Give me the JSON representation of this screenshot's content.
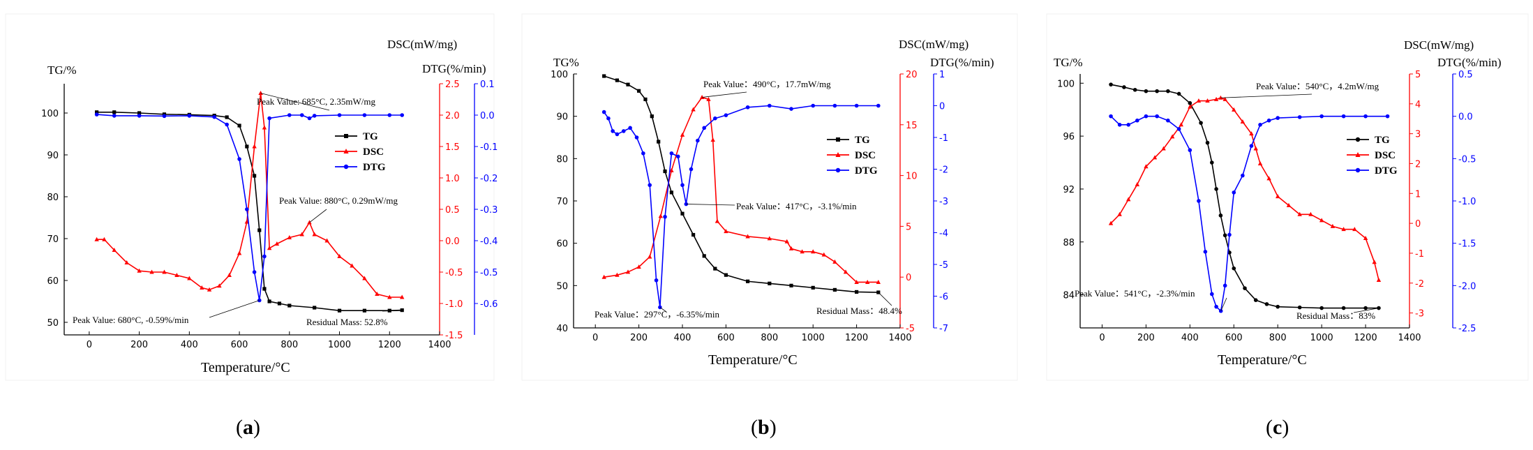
{
  "colors": {
    "TG": "#000000",
    "DSC": "#ff0000",
    "DTG": "#0000ff"
  },
  "chart_data": [
    {
      "type": "line",
      "caption": "a",
      "xlabel": "Temperature/°C",
      "y1label": "TG/%",
      "y2label": "DSC(mW/mg)",
      "y3label": "DTG(%/min)",
      "xlim": [
        -100,
        1400
      ],
      "xticks": [
        "0",
        "200",
        "400",
        "600",
        "800",
        "1000",
        "1200",
        "1400"
      ],
      "y1lim": [
        47,
        107
      ],
      "y1ticks": [
        "50",
        "60",
        "70",
        "80",
        "90",
        "100"
      ],
      "y2lim": [
        -1.5,
        2.5
      ],
      "y2ticks": [
        "-1.5",
        "-1.0",
        "-0.5",
        "0.0",
        "0.5",
        "1.0",
        "1.5",
        "2.0",
        "2.5"
      ],
      "y3lim": [
        -0.7,
        0.1
      ],
      "y3ticks": [
        "-0.6",
        "-0.5",
        "-0.4",
        "-0.3",
        "-0.2",
        "-0.1",
        "0.0",
        "0.1"
      ],
      "legend": [
        "TG",
        "DSC",
        "DTG"
      ],
      "series": [
        {
          "name": "TG",
          "axis": "y1",
          "marker": "square",
          "x": [
            30,
            100,
            200,
            300,
            400,
            500,
            550,
            600,
            630,
            660,
            680,
            700,
            720,
            760,
            800,
            900,
            1000,
            1100,
            1200,
            1250
          ],
          "y": [
            100.2,
            100.2,
            100,
            99.7,
            99.6,
            99.4,
            99,
            97,
            92,
            85,
            72,
            58,
            55,
            54.5,
            54,
            53.5,
            52.8,
            52.8,
            52.8,
            52.9
          ]
        },
        {
          "name": "DSC",
          "axis": "y2",
          "marker": "triangle",
          "x": [
            30,
            60,
            100,
            150,
            200,
            250,
            300,
            350,
            400,
            450,
            480,
            520,
            560,
            600,
            630,
            660,
            685,
            700,
            720,
            750,
            800,
            850,
            880,
            900,
            950,
            1000,
            1050,
            1100,
            1150,
            1200,
            1250
          ],
          "y": [
            0.02,
            0.02,
            -0.15,
            -0.35,
            -0.48,
            -0.5,
            -0.5,
            -0.55,
            -0.6,
            -0.75,
            -0.78,
            -0.72,
            -0.55,
            -0.2,
            0.3,
            1.5,
            2.35,
            1.8,
            -0.12,
            -0.05,
            0.05,
            0.1,
            0.29,
            0.1,
            0.0,
            -0.25,
            -0.4,
            -0.6,
            -0.85,
            -0.9,
            -0.9
          ]
        },
        {
          "name": "DTG",
          "axis": "y3",
          "marker": "circle",
          "x": [
            30,
            100,
            200,
            300,
            400,
            500,
            550,
            600,
            630,
            660,
            680,
            700,
            720,
            800,
            850,
            880,
            900,
            1000,
            1100,
            1200,
            1250
          ],
          "y": [
            0.002,
            -0.002,
            -0.002,
            -0.003,
            -0.002,
            -0.006,
            -0.03,
            -0.14,
            -0.3,
            -0.5,
            -0.59,
            -0.45,
            -0.01,
            0.0,
            0.0,
            -0.01,
            -0.002,
            0.0,
            0.0,
            0.0,
            0.0
          ]
        }
      ],
      "annotations": [
        {
          "text": "Peak Value: 685°C,  2.35mW/mg",
          "at_x": 685,
          "at_y": 2.35,
          "axis": "y2"
        },
        {
          "text": "Peak Value: 880°C, 0.29mW/mg",
          "at_x": 880,
          "at_y": 0.29,
          "axis": "y2"
        },
        {
          "text": "Peak Value: 680°C,  -0.59%/min",
          "at_x": 680,
          "at_y": -0.59,
          "axis": "y3"
        },
        {
          "text": "Residual Mass: 52.8%",
          "at_x": 1250,
          "at_y": 52.8,
          "axis": "y1"
        }
      ]
    },
    {
      "type": "line",
      "caption": "b",
      "xlabel": "Temperature/°C",
      "y1label": "TG%",
      "y2label": "DSC(mW/mg)",
      "y3label": "DTG(%/min)",
      "xlim": [
        -100,
        1400
      ],
      "xticks": [
        "0",
        "200",
        "400",
        "600",
        "800",
        "1000",
        "1200",
        "1400"
      ],
      "y1lim": [
        40,
        100
      ],
      "y1ticks": [
        "40",
        "50",
        "60",
        "70",
        "80",
        "90",
        "100"
      ],
      "y2lim": [
        -5,
        20
      ],
      "y2ticks": [
        "-5",
        "0",
        "5",
        "10",
        "15",
        "20"
      ],
      "y3lim": [
        -7,
        1
      ],
      "y3ticks": [
        "-7",
        "-6",
        "-5",
        "-4",
        "-3",
        "-2",
        "-1",
        "0",
        "1"
      ],
      "legend": [
        "TG",
        "DSC",
        "DTG"
      ],
      "series": [
        {
          "name": "TG",
          "axis": "y1",
          "marker": "square",
          "x": [
            40,
            100,
            150,
            200,
            230,
            260,
            290,
            320,
            350,
            400,
            450,
            500,
            550,
            600,
            700,
            800,
            900,
            1000,
            1100,
            1200,
            1300
          ],
          "y": [
            99.5,
            98.5,
            97.5,
            96,
            94,
            90,
            84,
            77,
            72,
            67,
            62,
            57,
            54,
            52.5,
            51,
            50.5,
            50,
            49.5,
            49,
            48.5,
            48.4
          ]
        },
        {
          "name": "DSC",
          "axis": "y2",
          "marker": "triangle",
          "x": [
            40,
            100,
            150,
            200,
            250,
            300,
            350,
            400,
            450,
            490,
            520,
            540,
            560,
            600,
            700,
            800,
            880,
            900,
            950,
            1000,
            1050,
            1100,
            1150,
            1200,
            1250,
            1300
          ],
          "y": [
            0,
            0.2,
            0.5,
            1.0,
            2.0,
            6.0,
            10.5,
            14.0,
            16.5,
            17.7,
            17.5,
            13.5,
            5.5,
            4.5,
            4.0,
            3.8,
            3.5,
            2.8,
            2.5,
            2.5,
            2.2,
            1.5,
            0.5,
            -0.5,
            -0.5,
            -0.5
          ]
        },
        {
          "name": "DTG",
          "axis": "y3",
          "marker": "circle",
          "x": [
            40,
            60,
            80,
            100,
            130,
            160,
            190,
            220,
            250,
            280,
            297,
            320,
            350,
            380,
            400,
            417,
            440,
            470,
            500,
            550,
            600,
            700,
            800,
            900,
            1000,
            1100,
            1200,
            1300
          ],
          "y": [
            -0.2,
            -0.4,
            -0.8,
            -0.9,
            -0.8,
            -0.7,
            -1.0,
            -1.5,
            -2.5,
            -5.5,
            -6.35,
            -3.5,
            -1.5,
            -1.6,
            -2.5,
            -3.1,
            -2.0,
            -1.1,
            -0.7,
            -0.4,
            -0.3,
            -0.05,
            0,
            -0.1,
            0,
            0,
            0,
            0
          ]
        }
      ],
      "annotations": [
        {
          "text": "Peak Value：490°C，17.7mW/mg",
          "at_x": 490,
          "at_y": 17.7,
          "axis": "y2"
        },
        {
          "text": "Peak Value：417°C，-3.1%/min",
          "at_x": 417,
          "at_y": -3.1,
          "axis": "y3"
        },
        {
          "text": "Peak Value：297°C，-6.35%/min",
          "at_x": 297,
          "at_y": -6.35,
          "axis": "y3"
        },
        {
          "text": "Residual Mass：48.4%",
          "at_x": 1300,
          "at_y": 48.4,
          "axis": "y1"
        }
      ]
    },
    {
      "type": "line",
      "caption": "c",
      "xlabel": "Temperature/°C",
      "y1label": "TG/%",
      "y2label": "DSC(mW/mg)",
      "y3label": "DTG(%/min)",
      "xlim": [
        -100,
        1400
      ],
      "xticks": [
        "0",
        "200",
        "400",
        "600",
        "800",
        "1000",
        "1200",
        "1400"
      ],
      "y1lim": [
        81.5,
        100.7
      ],
      "y1ticks": [
        "84",
        "88",
        "92",
        "96",
        "100"
      ],
      "y2lim": [
        -3.5,
        5
      ],
      "y2ticks": [
        "-3",
        "-2",
        "-1",
        "0",
        "1",
        "2",
        "3",
        "4",
        "5"
      ],
      "y3lim": [
        -2.5,
        0.5
      ],
      "y3ticks": [
        "-2.5",
        "-2.0",
        "-1.5",
        "-1.0",
        "-0.5",
        "0.0",
        "0.5"
      ],
      "legend": [
        "TG",
        "DSC",
        "DTG"
      ],
      "series": [
        {
          "name": "TG",
          "axis": "y1",
          "marker": "circle",
          "x": [
            40,
            100,
            150,
            200,
            250,
            300,
            350,
            400,
            450,
            480,
            500,
            520,
            540,
            560,
            580,
            600,
            650,
            700,
            750,
            800,
            900,
            1000,
            1100,
            1200,
            1260
          ],
          "y": [
            99.9,
            99.7,
            99.5,
            99.4,
            99.4,
            99.4,
            99.2,
            98.5,
            97,
            95.5,
            94,
            92,
            90,
            88.5,
            87.2,
            86,
            84.5,
            83.6,
            83.3,
            83.1,
            83.05,
            83.0,
            83.0,
            83.0,
            83.0
          ]
        },
        {
          "name": "DSC",
          "axis": "y2",
          "marker": "triangle",
          "x": [
            40,
            80,
            120,
            160,
            200,
            240,
            280,
            320,
            360,
            400,
            440,
            480,
            520,
            540,
            560,
            600,
            640,
            680,
            700,
            720,
            760,
            800,
            850,
            900,
            950,
            1000,
            1050,
            1100,
            1150,
            1200,
            1240,
            1260
          ],
          "y": [
            0,
            0.3,
            0.8,
            1.3,
            1.9,
            2.2,
            2.5,
            2.9,
            3.3,
            3.9,
            4.1,
            4.1,
            4.15,
            4.2,
            4.15,
            3.8,
            3.4,
            3.0,
            2.5,
            2.0,
            1.5,
            0.9,
            0.6,
            0.3,
            0.3,
            0.1,
            -0.1,
            -0.2,
            -0.2,
            -0.5,
            -1.3,
            -1.9
          ]
        },
        {
          "name": "DTG",
          "axis": "y3",
          "marker": "circle",
          "x": [
            40,
            80,
            120,
            160,
            200,
            250,
            300,
            350,
            400,
            440,
            470,
            500,
            520,
            541,
            560,
            580,
            600,
            640,
            680,
            720,
            760,
            800,
            900,
            1000,
            1100,
            1200,
            1300
          ],
          "y": [
            0,
            -0.1,
            -0.1,
            -0.05,
            0,
            0,
            -0.05,
            -0.15,
            -0.4,
            -1.0,
            -1.6,
            -2.1,
            -2.25,
            -2.3,
            -2.0,
            -1.4,
            -0.9,
            -0.7,
            -0.35,
            -0.1,
            -0.05,
            -0.02,
            -0.01,
            0,
            0,
            0,
            0
          ]
        }
      ],
      "annotations": [
        {
          "text": "Peak Value：540°C，4.2mW/mg",
          "at_x": 540,
          "at_y": 4.2,
          "axis": "y2"
        },
        {
          "text": "Peak Value：541°C，-2.3%/min",
          "at_x": 541,
          "at_y": -2.3,
          "axis": "y3"
        },
        {
          "text": "Residual Mass：83%",
          "at_x": 1260,
          "at_y": 83.0,
          "axis": "y1"
        }
      ]
    }
  ]
}
